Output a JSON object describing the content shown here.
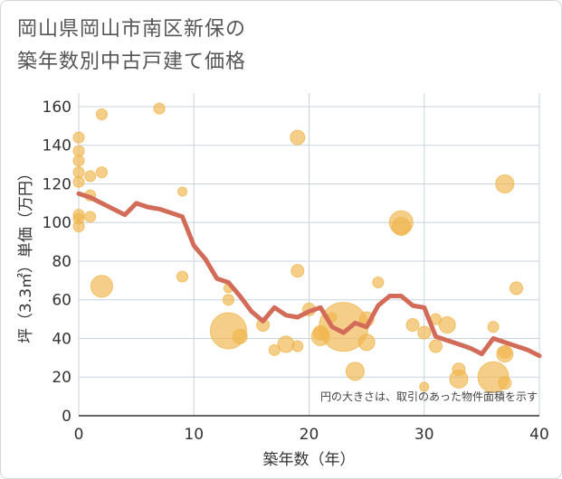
{
  "title_lines": [
    "岡山県岡山市南区新保の",
    "築年数別中古戸建て価格"
  ],
  "note": "円の大きさは、取引のあった物件面積を示す",
  "colors": {
    "line": "#d26b58",
    "bubble": "#f0b54b",
    "grid": "#c9d3e0",
    "axis": "#333333"
  },
  "chart_data": {
    "type": "scatter",
    "title": "岡山県岡山市南区新保の築年数別中古戸建て価格",
    "xlabel": "築年数（年）",
    "ylabel": "坪（3.3㎡）単価（万円）",
    "xlim": [
      0,
      40
    ],
    "ylim": [
      0,
      167
    ],
    "xticks": [
      0,
      10,
      20,
      30,
      40
    ],
    "yticks": [
      0,
      20,
      40,
      60,
      80,
      100,
      120,
      140,
      160
    ],
    "grid": true,
    "points": [
      {
        "x": 0,
        "y": 144,
        "s": 6
      },
      {
        "x": 0,
        "y": 137,
        "s": 6
      },
      {
        "x": 0,
        "y": 132,
        "s": 6
      },
      {
        "x": 0,
        "y": 126,
        "s": 6
      },
      {
        "x": 0,
        "y": 121,
        "s": 6
      },
      {
        "x": 0,
        "y": 104,
        "s": 6
      },
      {
        "x": 0,
        "y": 102,
        "s": 6
      },
      {
        "x": 0,
        "y": 98,
        "s": 6
      },
      {
        "x": 1,
        "y": 124,
        "s": 6
      },
      {
        "x": 1,
        "y": 114,
        "s": 6
      },
      {
        "x": 1,
        "y": 103,
        "s": 6
      },
      {
        "x": 2,
        "y": 156,
        "s": 6
      },
      {
        "x": 2,
        "y": 126,
        "s": 6
      },
      {
        "x": 2,
        "y": 67,
        "s": 12
      },
      {
        "x": 7,
        "y": 159,
        "s": 6
      },
      {
        "x": 9,
        "y": 116,
        "s": 5
      },
      {
        "x": 9,
        "y": 72,
        "s": 6
      },
      {
        "x": 13,
        "y": 66,
        "s": 5
      },
      {
        "x": 13,
        "y": 60,
        "s": 6
      },
      {
        "x": 13,
        "y": 44,
        "s": 20
      },
      {
        "x": 14,
        "y": 41,
        "s": 8
      },
      {
        "x": 16,
        "y": 47,
        "s": 7
      },
      {
        "x": 17,
        "y": 34,
        "s": 6
      },
      {
        "x": 18,
        "y": 37,
        "s": 9
      },
      {
        "x": 19,
        "y": 144,
        "s": 8
      },
      {
        "x": 19,
        "y": 75,
        "s": 7
      },
      {
        "x": 19,
        "y": 36,
        "s": 6
      },
      {
        "x": 20,
        "y": 55,
        "s": 7
      },
      {
        "x": 21,
        "y": 43,
        "s": 8
      },
      {
        "x": 21,
        "y": 41,
        "s": 10
      },
      {
        "x": 22,
        "y": 51,
        "s": 5
      },
      {
        "x": 23,
        "y": 46,
        "s": 27
      },
      {
        "x": 24,
        "y": 23,
        "s": 10
      },
      {
        "x": 25,
        "y": 50,
        "s": 8
      },
      {
        "x": 25,
        "y": 38,
        "s": 9
      },
      {
        "x": 26,
        "y": 69,
        "s": 6
      },
      {
        "x": 28,
        "y": 100,
        "s": 13
      },
      {
        "x": 28,
        "y": 98,
        "s": 10
      },
      {
        "x": 29,
        "y": 47,
        "s": 7
      },
      {
        "x": 30,
        "y": 43,
        "s": 7
      },
      {
        "x": 30,
        "y": 15,
        "s": 5
      },
      {
        "x": 31,
        "y": 50,
        "s": 6
      },
      {
        "x": 31,
        "y": 36,
        "s": 7
      },
      {
        "x": 32,
        "y": 47,
        "s": 9
      },
      {
        "x": 33,
        "y": 24,
        "s": 7
      },
      {
        "x": 33,
        "y": 19,
        "s": 10
      },
      {
        "x": 36,
        "y": 46,
        "s": 6
      },
      {
        "x": 36,
        "y": 20,
        "s": 17
      },
      {
        "x": 37,
        "y": 120,
        "s": 10
      },
      {
        "x": 37,
        "y": 33,
        "s": 7
      },
      {
        "x": 37,
        "y": 32,
        "s": 9
      },
      {
        "x": 37,
        "y": 17,
        "s": 7
      },
      {
        "x": 38,
        "y": 66,
        "s": 7
      }
    ],
    "trend": {
      "x": [
        0,
        1,
        2,
        3,
        4,
        5,
        6,
        7,
        8,
        9,
        10,
        11,
        12,
        13,
        14,
        15,
        16,
        17,
        18,
        19,
        20,
        21,
        22,
        23,
        24,
        25,
        26,
        27,
        28,
        29,
        30,
        31,
        32,
        33,
        34,
        35,
        36,
        37,
        38,
        39,
        40
      ],
      "y": [
        115,
        113,
        110,
        107,
        104,
        110,
        108,
        107,
        105,
        103,
        88,
        81,
        71,
        69,
        62,
        54,
        49,
        56,
        52,
        51,
        54,
        56,
        46,
        43,
        48,
        46,
        57,
        62,
        62,
        57,
        56,
        41,
        39,
        37,
        35,
        32,
        40,
        38,
        36,
        34,
        31
      ]
    }
  }
}
